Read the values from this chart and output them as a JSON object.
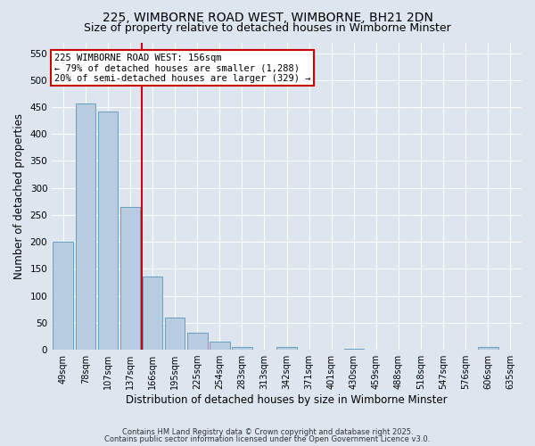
{
  "title1": "225, WIMBORNE ROAD WEST, WIMBORNE, BH21 2DN",
  "title2": "Size of property relative to detached houses in Wimborne Minster",
  "xlabel": "Distribution of detached houses by size in Wimborne Minster",
  "ylabel": "Number of detached properties",
  "categories": [
    "49sqm",
    "78sqm",
    "107sqm",
    "137sqm",
    "166sqm",
    "195sqm",
    "225sqm",
    "254sqm",
    "283sqm",
    "313sqm",
    "342sqm",
    "371sqm",
    "401sqm",
    "430sqm",
    "459sqm",
    "488sqm",
    "518sqm",
    "547sqm",
    "576sqm",
    "606sqm",
    "635sqm"
  ],
  "values": [
    201,
    456,
    441,
    265,
    135,
    60,
    32,
    15,
    5,
    0,
    5,
    0,
    0,
    2,
    0,
    0,
    0,
    0,
    0,
    5,
    0
  ],
  "bar_color": "#b8ccdf",
  "bar_edge_color": "#6a9fc0",
  "vline_x_between": 4,
  "vline_color": "#cc0000",
  "annotation_text": "225 WIMBORNE ROAD WEST: 156sqm\n← 79% of detached houses are smaller (1,288)\n20% of semi-detached houses are larger (329) →",
  "annotation_box_facecolor": "#ffffff",
  "annotation_box_edgecolor": "#cc0000",
  "ylim": [
    0,
    570
  ],
  "yticks": [
    0,
    50,
    100,
    150,
    200,
    250,
    300,
    350,
    400,
    450,
    500,
    550
  ],
  "bg_color": "#dde5ef",
  "plot_bg_color": "#dde5ef",
  "grid_color": "#ffffff",
  "footer1": "Contains HM Land Registry data © Crown copyright and database right 2025.",
  "footer2": "Contains public sector information licensed under the Open Government Licence v3.0.",
  "title_fontsize": 10,
  "subtitle_fontsize": 9,
  "tick_label_fontsize": 7,
  "ylabel_fontsize": 8.5,
  "xlabel_fontsize": 8.5,
  "annotation_fontsize": 7.5
}
